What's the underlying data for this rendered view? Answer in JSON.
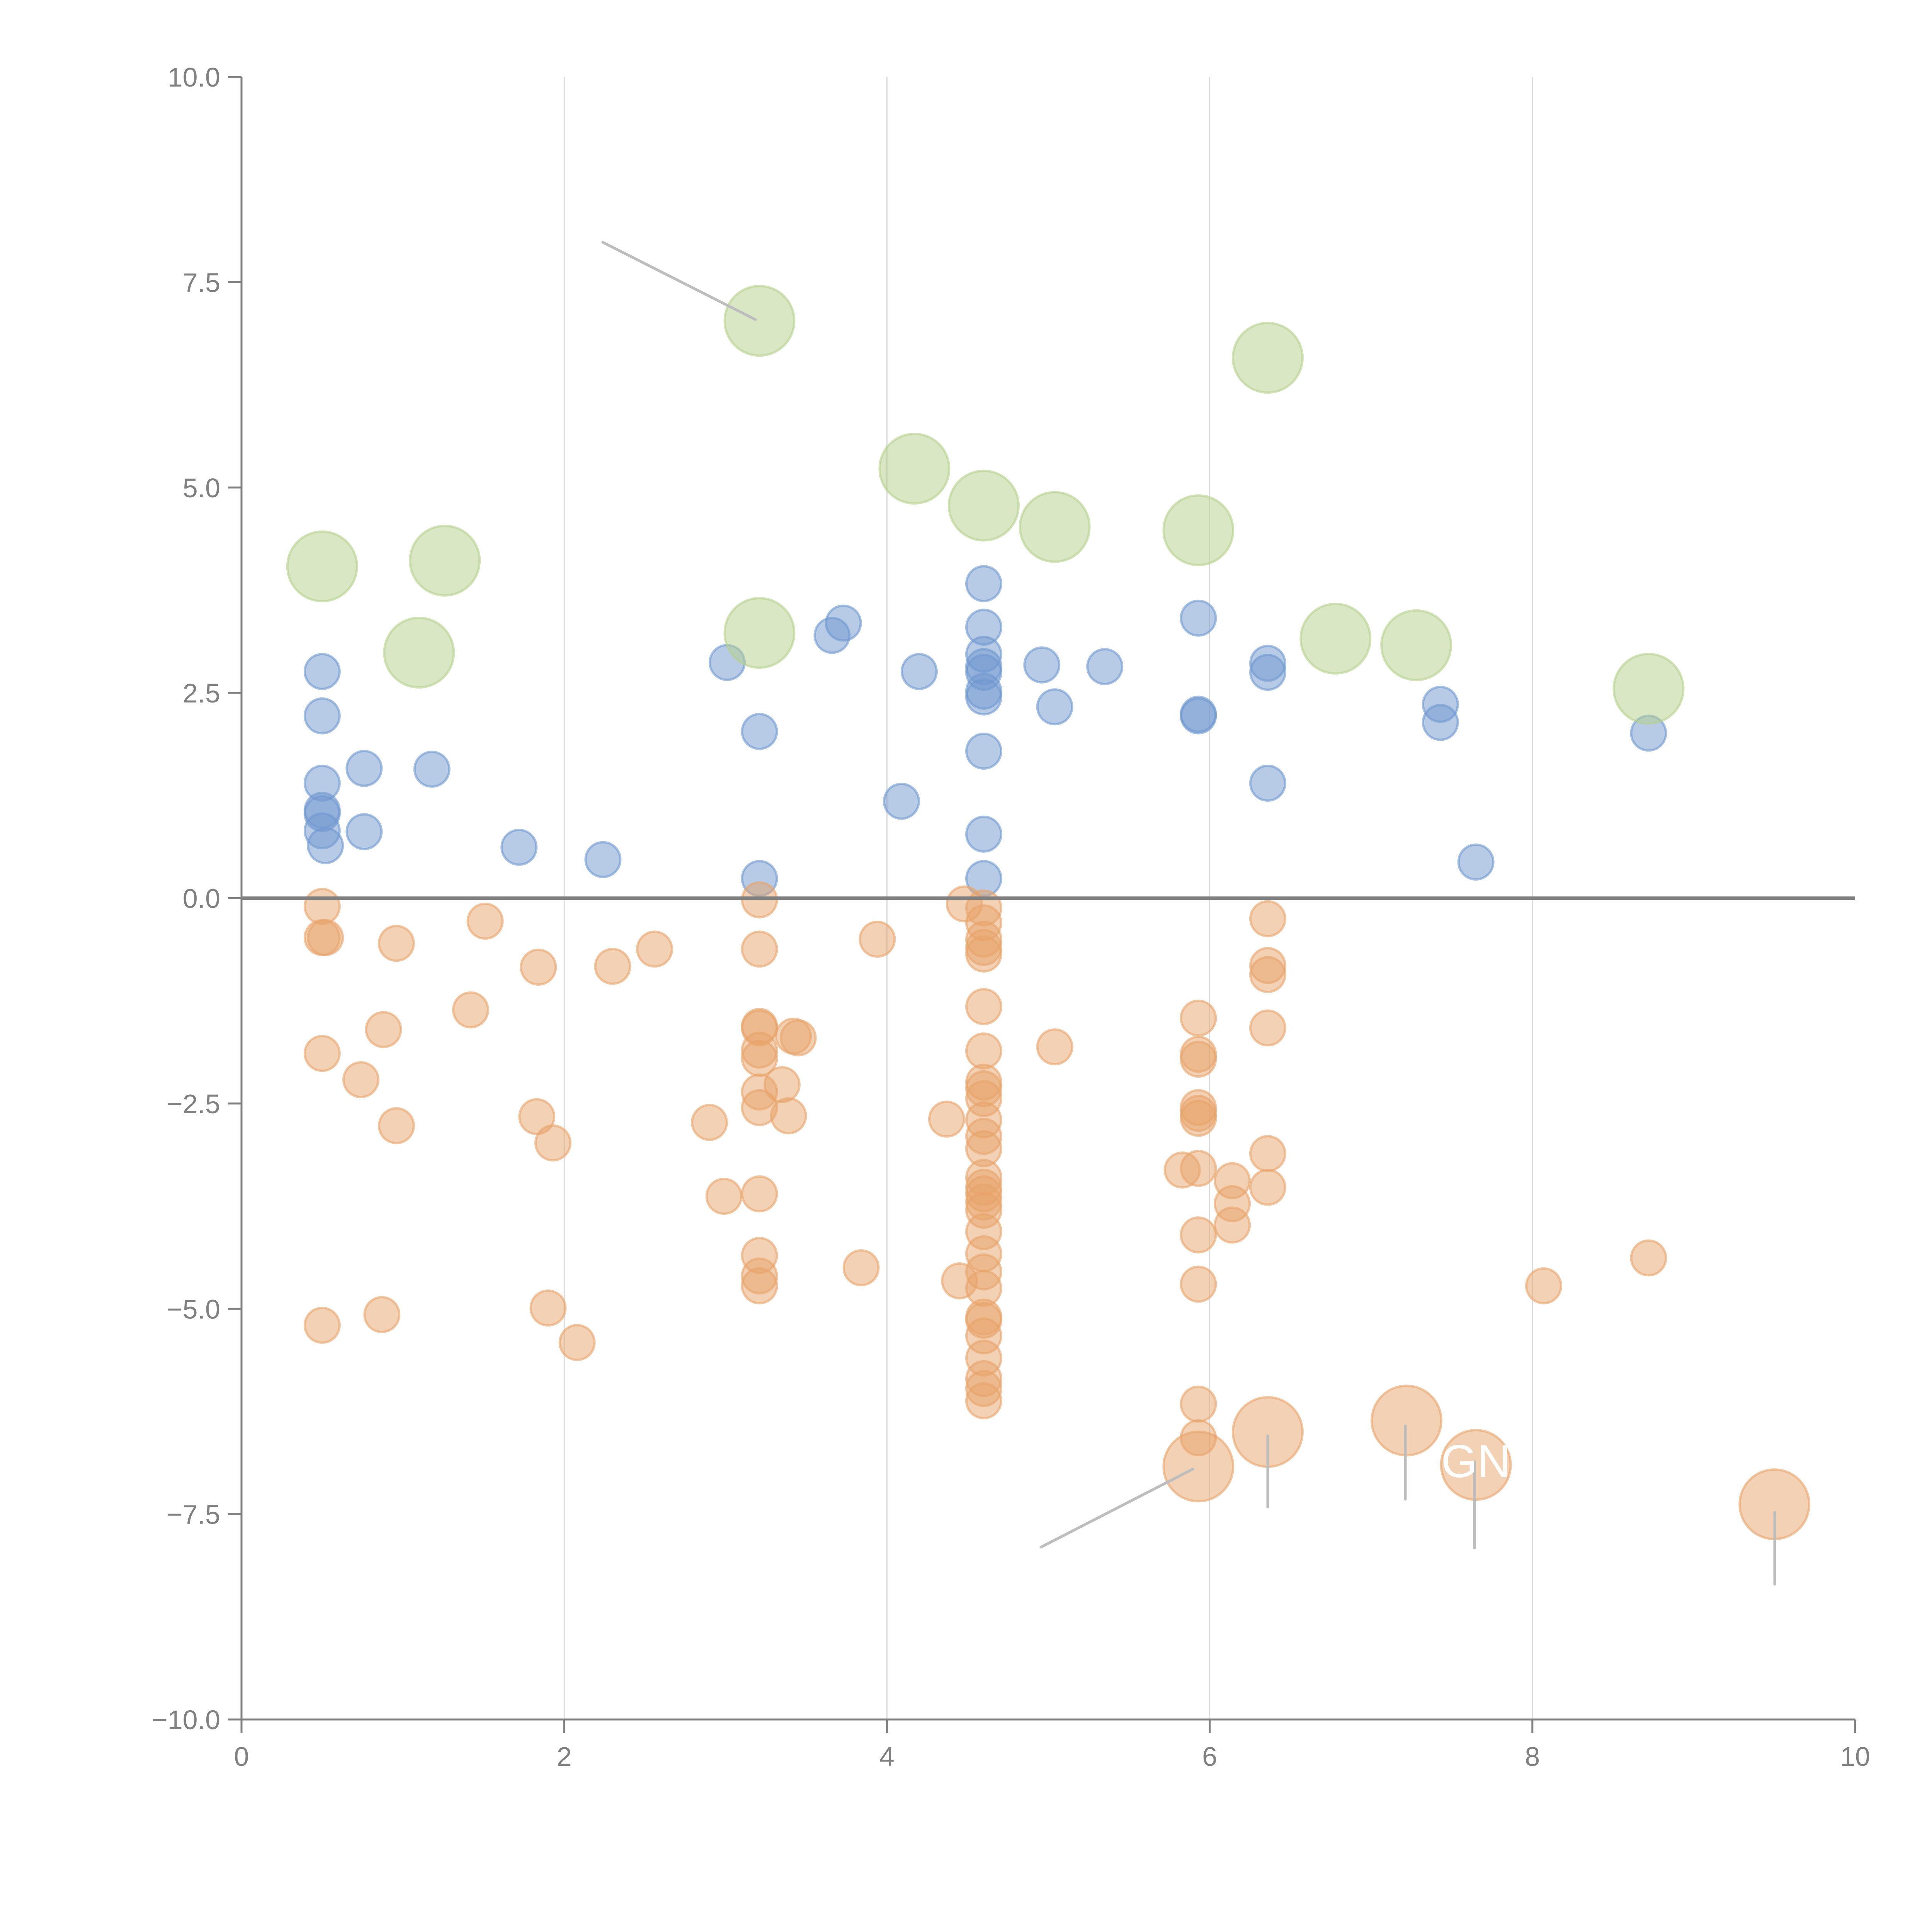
{
  "chart_data": {
    "type": "scatter",
    "title": "",
    "xlabel": "",
    "ylabel": "",
    "xlim": [
      0,
      10
    ],
    "ylim": [
      -10,
      10
    ],
    "x_ticks": [
      "0",
      "2",
      "4",
      "6",
      "8",
      "10"
    ],
    "y_ticks": [
      "10.0",
      "7.5",
      "5.0",
      "2.5",
      "0.0",
      "−2.5",
      "−5.0",
      "−7.5",
      "−10.0"
    ],
    "grid": "vertical",
    "zero_line": true,
    "legend": "none",
    "series": [
      {
        "name": "blue",
        "color": "#6f97cf",
        "size": "small",
        "points": [
          [
            0.5,
            2.76
          ],
          [
            0.5,
            2.22
          ],
          [
            0.5,
            1.4
          ],
          [
            0.5,
            1.07
          ],
          [
            0.5,
            1.03
          ],
          [
            0.5,
            0.82
          ],
          [
            0.52,
            0.64
          ],
          [
            0.76,
            1.58
          ],
          [
            0.76,
            0.81
          ],
          [
            1.18,
            1.57
          ],
          [
            1.72,
            0.62
          ],
          [
            2.24,
            0.47
          ],
          [
            3.01,
            2.87
          ],
          [
            3.21,
            2.03
          ],
          [
            3.21,
            0.24
          ],
          [
            3.66,
            3.2
          ],
          [
            3.73,
            3.35
          ],
          [
            4.09,
            1.18
          ],
          [
            4.2,
            2.76
          ],
          [
            4.6,
            3.83
          ],
          [
            4.6,
            3.3
          ],
          [
            4.6,
            2.97
          ],
          [
            4.6,
            2.82
          ],
          [
            4.6,
            2.75
          ],
          [
            4.6,
            2.52
          ],
          [
            4.6,
            2.45
          ],
          [
            4.6,
            1.79
          ],
          [
            4.6,
            0.78
          ],
          [
            4.6,
            0.24
          ],
          [
            4.96,
            2.84
          ],
          [
            5.04,
            2.33
          ],
          [
            5.35,
            2.82
          ],
          [
            5.93,
            3.41
          ],
          [
            5.93,
            2.24
          ],
          [
            5.93,
            2.22
          ],
          [
            6.36,
            2.86
          ],
          [
            6.36,
            2.75
          ],
          [
            6.36,
            1.4
          ],
          [
            7.43,
            2.36
          ],
          [
            7.43,
            2.14
          ],
          [
            7.65,
            0.44
          ],
          [
            8.72,
            2.01
          ]
        ]
      },
      {
        "name": "orange",
        "color": "#e8a36a",
        "size": "small",
        "points": [
          [
            0.5,
            -0.1
          ],
          [
            0.5,
            -0.48
          ],
          [
            0.52,
            -0.48
          ],
          [
            0.5,
            -1.89
          ],
          [
            0.5,
            -5.2
          ],
          [
            0.74,
            -2.21
          ],
          [
            0.88,
            -1.6
          ],
          [
            0.87,
            -5.07
          ],
          [
            0.96,
            -0.55
          ],
          [
            0.96,
            -2.77
          ],
          [
            1.42,
            -1.36
          ],
          [
            1.51,
            -0.28
          ],
          [
            1.84,
            -0.84
          ],
          [
            1.83,
            -2.66
          ],
          [
            1.9,
            -4.99
          ],
          [
            1.93,
            -2.98
          ],
          [
            2.08,
            -5.41
          ],
          [
            2.3,
            -0.83
          ],
          [
            2.56,
            -0.62
          ],
          [
            2.9,
            -2.73
          ],
          [
            2.99,
            -3.63
          ],
          [
            3.21,
            -0.02
          ],
          [
            3.21,
            -0.62
          ],
          [
            3.21,
            -1.56
          ],
          [
            3.21,
            -1.58
          ],
          [
            3.21,
            -1.85
          ],
          [
            3.21,
            -1.95
          ],
          [
            3.21,
            -2.36
          ],
          [
            3.21,
            -2.55
          ],
          [
            3.21,
            -3.6
          ],
          [
            3.21,
            -4.35
          ],
          [
            3.21,
            -4.6
          ],
          [
            3.21,
            -4.72
          ],
          [
            3.35,
            -2.27
          ],
          [
            3.39,
            -2.65
          ],
          [
            3.42,
            -1.68
          ],
          [
            3.45,
            -1.7
          ],
          [
            3.84,
            -4.5
          ],
          [
            3.94,
            -0.5
          ],
          [
            4.37,
            -2.69
          ],
          [
            4.45,
            -4.66
          ],
          [
            4.48,
            -0.07
          ],
          [
            4.6,
            -0.12
          ],
          [
            4.6,
            -0.3
          ],
          [
            4.6,
            -0.5
          ],
          [
            4.6,
            -0.6
          ],
          [
            4.6,
            -0.68
          ],
          [
            4.6,
            -1.32
          ],
          [
            4.6,
            -1.86
          ],
          [
            4.6,
            -2.24
          ],
          [
            4.6,
            -2.32
          ],
          [
            4.6,
            -2.44
          ],
          [
            4.6,
            -2.7
          ],
          [
            4.6,
            -2.9
          ],
          [
            4.6,
            -3.05
          ],
          [
            4.6,
            -3.4
          ],
          [
            4.6,
            -3.52
          ],
          [
            4.6,
            -3.6
          ],
          [
            4.6,
            -3.7
          ],
          [
            4.6,
            -3.8
          ],
          [
            4.6,
            -4.06
          ],
          [
            4.6,
            -4.33
          ],
          [
            4.6,
            -4.55
          ],
          [
            4.6,
            -4.75
          ],
          [
            4.6,
            -5.1
          ],
          [
            4.6,
            -5.14
          ],
          [
            4.6,
            -5.33
          ],
          [
            4.6,
            -5.6
          ],
          [
            4.6,
            -5.85
          ],
          [
            4.6,
            -5.97
          ],
          [
            4.6,
            -6.12
          ],
          [
            5.04,
            -1.81
          ],
          [
            5.83,
            -3.31
          ],
          [
            5.93,
            -1.46
          ],
          [
            5.93,
            -1.9
          ],
          [
            5.93,
            -1.96
          ],
          [
            5.93,
            -2.55
          ],
          [
            5.93,
            -2.62
          ],
          [
            5.93,
            -2.68
          ],
          [
            5.93,
            -3.29
          ],
          [
            5.93,
            -4.1
          ],
          [
            5.93,
            -4.7
          ],
          [
            5.93,
            -6.16
          ],
          [
            5.93,
            -6.57
          ],
          [
            6.14,
            -3.44
          ],
          [
            6.14,
            -3.72
          ],
          [
            6.14,
            -3.98
          ],
          [
            6.36,
            -0.25
          ],
          [
            6.36,
            -0.82
          ],
          [
            6.36,
            -0.93
          ],
          [
            6.36,
            -1.58
          ],
          [
            6.36,
            -3.11
          ],
          [
            6.36,
            -3.52
          ],
          [
            8.07,
            -4.72
          ],
          [
            8.72,
            -4.38
          ]
        ]
      },
      {
        "name": "green-large",
        "color": "#b5d08c",
        "size": "large",
        "points": [
          [
            0.5,
            4.04
          ],
          [
            1.1,
            2.99
          ],
          [
            1.26,
            4.11
          ],
          [
            3.21,
            3.23
          ],
          [
            3.21,
            7.03
          ],
          [
            4.17,
            5.23
          ],
          [
            4.6,
            4.78
          ],
          [
            5.04,
            4.52
          ],
          [
            5.93,
            4.48
          ],
          [
            6.36,
            6.58
          ],
          [
            6.78,
            3.16
          ],
          [
            7.28,
            3.08
          ],
          [
            8.72,
            2.55
          ]
        ]
      },
      {
        "name": "orange-large",
        "color": "#e8a36a",
        "size": "large",
        "points": [
          [
            5.93,
            -6.92
          ],
          [
            6.36,
            -6.5
          ],
          [
            7.22,
            -6.36
          ],
          [
            7.65,
            -6.9
          ],
          [
            9.5,
            -7.38
          ]
        ]
      }
    ],
    "annotations": [
      {
        "text": "GN",
        "x": 7.65,
        "y": -7.05,
        "color": "#ffffff"
      }
    ]
  }
}
